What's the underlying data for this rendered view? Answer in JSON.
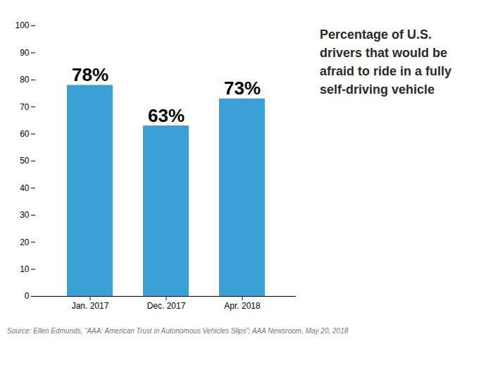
{
  "chart_data": {
    "type": "bar",
    "title": "Percentage of U.S.\ndrivers that would be\nafraid to ride in a fully\nself-driving vehicle",
    "categories": [
      "Jan. 2017",
      "Dec. 2017",
      "Apr. 2018"
    ],
    "values": [
      78,
      63,
      73
    ],
    "value_labels": [
      "78%",
      "63%",
      "73%"
    ],
    "data_labels": true,
    "color": "#3aa0d5",
    "ylim": [
      0,
      100
    ],
    "yticks": [
      0,
      10,
      20,
      30,
      40,
      50,
      60,
      70,
      80,
      90,
      100
    ],
    "grid": false,
    "annotations": [
      "Source: Ellen Edmunds, “AAA: American Trust in Autonomous Vehicles Slips”; AAA Newsroom, May 20, 2018"
    ]
  }
}
